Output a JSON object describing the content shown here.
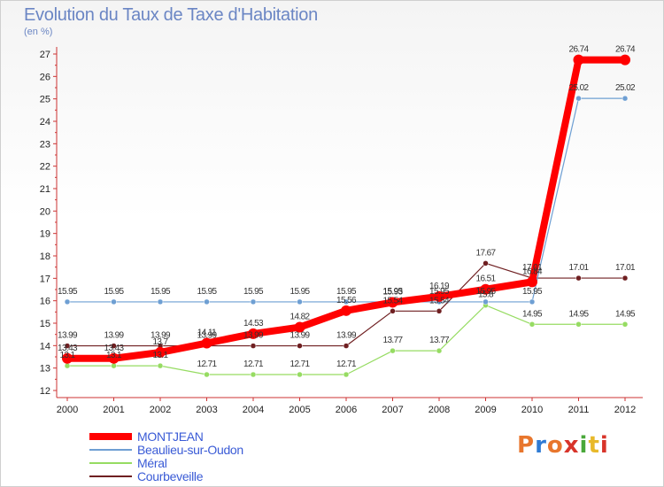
{
  "title": "Evolution du Taux de Taxe d'Habitation",
  "subtitle": "(en %)",
  "logo": {
    "letters": [
      "P",
      "r",
      "o",
      "x",
      "i",
      "t",
      "i"
    ],
    "colors": [
      "#e8762d",
      "#2f7bd4",
      "#e8762d",
      "#d8342a",
      "#49a83a",
      "#e8b92a",
      "#d8342a"
    ]
  },
  "chart_data": {
    "type": "line",
    "title": "Evolution du Taux de Taxe d'Habitation",
    "ylabel": "(en %)",
    "xlabel": "",
    "x": [
      "2000",
      "2001",
      "2002",
      "2003",
      "2004",
      "2005",
      "2006",
      "2007",
      "2008",
      "2009",
      "2010",
      "2011",
      "2012"
    ],
    "ylim": [
      12,
      27
    ],
    "yticks": [
      12,
      13,
      14,
      15,
      16,
      17,
      18,
      19,
      20,
      21,
      22,
      23,
      24,
      25,
      26,
      27
    ],
    "grid": false,
    "legend_position": "bottom-left",
    "series": [
      {
        "name": "MONTJEAN",
        "color": "#ff0000",
        "values": [
          13.43,
          13.43,
          13.7,
          14.11,
          14.53,
          14.82,
          15.56,
          15.93,
          16.19,
          16.51,
          16.84,
          26.74,
          26.74
        ],
        "labels": [
          "13.43",
          "13.43",
          "13.7",
          "14.11",
          "14.53",
          "14.82",
          "15.56",
          "15.93",
          "16.19",
          "16.51",
          "16.84",
          "26.74",
          "26.74"
        ]
      },
      {
        "name": "Beaulieu-sur-Oudon",
        "color": "#6e9fd3",
        "values": [
          15.95,
          15.95,
          15.95,
          15.95,
          15.95,
          15.95,
          15.95,
          15.95,
          15.95,
          15.95,
          15.95,
          25.02,
          25.02
        ],
        "labels": [
          "15.95",
          "15.95",
          "15.95",
          "15.95",
          "15.95",
          "15.95",
          "15.95",
          "15.95",
          "15.95",
          "15.95",
          "15.95",
          "25.02",
          "25.02"
        ]
      },
      {
        "name": "Méral",
        "color": "#96dc62",
        "values": [
          13.1,
          13.1,
          13.1,
          12.71,
          12.71,
          12.71,
          12.71,
          13.77,
          13.77,
          15.8,
          14.95,
          14.95,
          14.95
        ],
        "labels": [
          "13.1",
          "13.1",
          "13.1",
          "12.71",
          "12.71",
          "12.71",
          "12.71",
          "13.77",
          "13.77",
          "15.8",
          "14.95",
          "14.95",
          "14.95"
        ]
      },
      {
        "name": "Courbeveille",
        "color": "#6f1f21",
        "values": [
          13.99,
          13.99,
          13.99,
          13.99,
          13.99,
          13.99,
          13.99,
          15.54,
          15.54,
          17.67,
          17.01,
          17.01,
          17.01
        ],
        "labels": [
          "13.99",
          "13.99",
          "13.99",
          "13.99",
          "13.99",
          "13.99",
          "13.99",
          "15.54",
          "15.54",
          "17.67",
          "17.01",
          "17.01",
          "17.01"
        ]
      }
    ]
  }
}
